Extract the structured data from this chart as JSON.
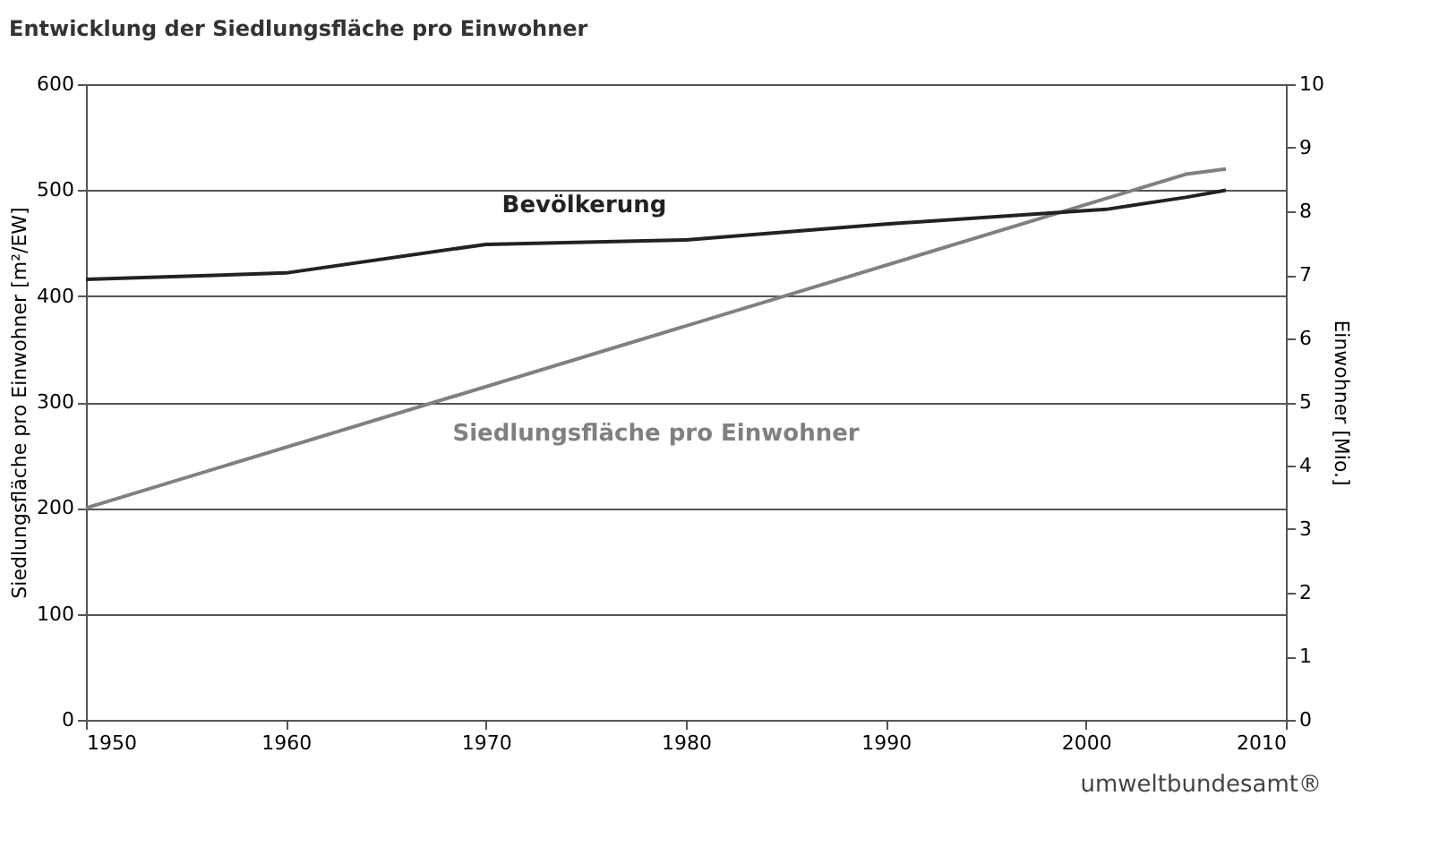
{
  "chart_data": {
    "type": "line",
    "title": "Entwicklung der Siedlungsfläche pro Einwohner",
    "ylabel": "Siedlungsfläche pro Einwohner [m²/EW]",
    "y2label": "Einwohner [Mio.]",
    "series": [
      {
        "name": "Bevölkerung",
        "color": "#222222",
        "axis": "y2",
        "x": [
          1950,
          1960,
          1970,
          1980,
          1990,
          2001,
          2005,
          2007
        ],
        "values": [
          6.93,
          7.03,
          7.48,
          7.55,
          7.8,
          8.03,
          8.22,
          8.33
        ]
      },
      {
        "name": "Siedlungsfläche pro Einwohner",
        "color": "#808080",
        "axis": "y",
        "x": [
          1950,
          2005,
          2007
        ],
        "values": [
          200,
          515,
          520
        ]
      }
    ],
    "xlim": [
      1950,
      2010
    ],
    "xticks": [
      1950,
      1960,
      1970,
      1980,
      1990,
      2000,
      2010
    ],
    "ylim": [
      0,
      600
    ],
    "yticks": [
      0,
      100,
      200,
      300,
      400,
      500,
      600
    ],
    "y2lim": [
      0,
      10
    ],
    "y2ticks": [
      0,
      1,
      2,
      3,
      4,
      5,
      6,
      7,
      8,
      9,
      10
    ],
    "grid": "y",
    "marker": "none",
    "line_style": "solid",
    "annotations": [
      "umweltbundesamt®"
    ]
  }
}
